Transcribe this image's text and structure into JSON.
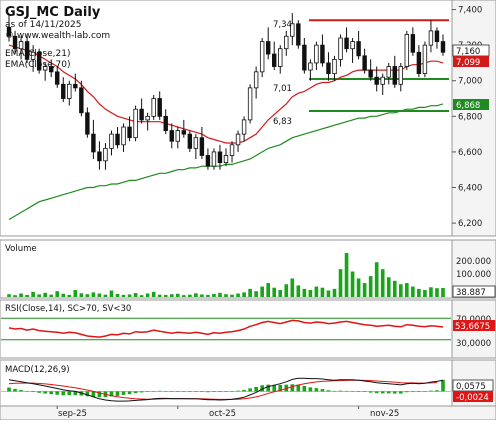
{
  "header": {
    "title": "GSJ_MC Daily",
    "asof": "as of 14/11/2025",
    "site": "© www.wealth-lab.com",
    "ema21_label": "EMA(Close,21)",
    "ema70_label": "EMA(Close,70)"
  },
  "colors": {
    "up_candle": "#ffffff",
    "down_candle": "#111111",
    "ema21": "#d11a1a",
    "ema70": "#1f8a1f",
    "resistance": "#d11a1a",
    "support": "#1f8a1f",
    "volume": "#19a419",
    "rsi": "#e01515",
    "macd": "#111111",
    "macd_signal": "#e01515",
    "macd_hist": "#19a419",
    "axis_bg": "#f4f4f4",
    "tag_close_bg": "#ffffff",
    "tag_ema21_bg": "#d11a1a",
    "tag_ema70_bg": "#1f8a1f"
  },
  "price_annotations": {
    "high_label": "7,34",
    "mid_label": "7,01",
    "low_label": "6,83"
  },
  "price_tags": {
    "close": "7,160",
    "ema21": "7,099",
    "ema70": "6,868"
  },
  "volume_pane": {
    "title": "Volume",
    "last_value": "38.887",
    "ticks": [
      "200.000",
      "100.000"
    ]
  },
  "rsi_pane": {
    "title": "RSI(Close,14), SC>70, SV<30",
    "last_value": "53,6675",
    "ticks": [
      "70,0000",
      "30,0000"
    ]
  },
  "macd_pane": {
    "title": "MACD(12,26,9)",
    "macd_value": "0,0575",
    "signal_value": "-0,0024"
  },
  "x_axis": {
    "labels": [
      "sep-25",
      "oct-25",
      "nov-25"
    ]
  },
  "chart_data": {
    "type": "candlestick",
    "title": "GSJ_MC Daily",
    "y_ticks": [
      "7,400",
      "7,200",
      "7,000",
      "6,800",
      "6,600",
      "6,400",
      "6,200"
    ],
    "ylim": [
      6.15,
      7.42
    ],
    "levels": {
      "resistance": 7.34,
      "support_upper": 7.01,
      "support_lower": 6.83
    },
    "candles": [
      [
        7.3,
        7.38,
        7.22,
        7.25
      ],
      [
        7.25,
        7.28,
        7.15,
        7.18
      ],
      [
        7.18,
        7.25,
        7.12,
        7.22
      ],
      [
        7.22,
        7.26,
        7.1,
        7.12
      ],
      [
        7.12,
        7.2,
        7.05,
        7.16
      ],
      [
        7.16,
        7.18,
        7.04,
        7.06
      ],
      [
        7.06,
        7.1,
        7.0,
        7.08
      ],
      [
        7.08,
        7.12,
        7.02,
        7.05
      ],
      [
        7.05,
        7.08,
        6.96,
        6.98
      ],
      [
        6.98,
        7.02,
        6.88,
        6.9
      ],
      [
        6.9,
        7.0,
        6.86,
        6.98
      ],
      [
        6.98,
        7.04,
        6.94,
        6.96
      ],
      [
        6.96,
        7.0,
        6.8,
        6.82
      ],
      [
        6.82,
        6.85,
        6.68,
        6.7
      ],
      [
        6.7,
        6.78,
        6.56,
        6.6
      ],
      [
        6.6,
        6.66,
        6.5,
        6.55
      ],
      [
        6.55,
        6.65,
        6.5,
        6.62
      ],
      [
        6.62,
        6.72,
        6.58,
        6.7
      ],
      [
        6.7,
        6.74,
        6.62,
        6.64
      ],
      [
        6.64,
        6.76,
        6.6,
        6.74
      ],
      [
        6.74,
        6.8,
        6.66,
        6.68
      ],
      [
        6.68,
        6.86,
        6.66,
        6.84
      ],
      [
        6.84,
        6.9,
        6.76,
        6.78
      ],
      [
        6.78,
        6.82,
        6.72,
        6.8
      ],
      [
        6.8,
        6.92,
        6.78,
        6.9
      ],
      [
        6.9,
        6.94,
        6.78,
        6.8
      ],
      [
        6.8,
        6.84,
        6.7,
        6.72
      ],
      [
        6.72,
        6.76,
        6.62,
        6.66
      ],
      [
        6.66,
        6.74,
        6.62,
        6.72
      ],
      [
        6.72,
        6.78,
        6.68,
        6.7
      ],
      [
        6.7,
        6.72,
        6.6,
        6.62
      ],
      [
        6.62,
        6.7,
        6.56,
        6.68
      ],
      [
        6.68,
        6.74,
        6.56,
        6.58
      ],
      [
        6.58,
        6.62,
        6.5,
        6.52
      ],
      [
        6.52,
        6.62,
        6.5,
        6.6
      ],
      [
        6.6,
        6.64,
        6.5,
        6.54
      ],
      [
        6.54,
        6.62,
        6.52,
        6.58
      ],
      [
        6.58,
        6.66,
        6.54,
        6.64
      ],
      [
        6.64,
        6.72,
        6.6,
        6.7
      ],
      [
        6.7,
        6.8,
        6.66,
        6.78
      ],
      [
        6.78,
        6.98,
        6.76,
        6.96
      ],
      [
        6.96,
        7.08,
        6.9,
        7.05
      ],
      [
        7.05,
        7.24,
        7.02,
        7.22
      ],
      [
        7.22,
        7.3,
        7.12,
        7.15
      ],
      [
        7.15,
        7.22,
        7.06,
        7.08
      ],
      [
        7.08,
        7.2,
        7.04,
        7.18
      ],
      [
        7.18,
        7.28,
        7.14,
        7.25
      ],
      [
        7.25,
        7.38,
        7.2,
        7.32
      ],
      [
        7.32,
        7.34,
        7.18,
        7.2
      ],
      [
        7.2,
        7.24,
        7.04,
        7.06
      ],
      [
        7.06,
        7.12,
        7.0,
        7.1
      ],
      [
        7.1,
        7.22,
        7.06,
        7.2
      ],
      [
        7.2,
        7.26,
        7.08,
        7.1
      ],
      [
        7.1,
        7.16,
        7.0,
        7.04
      ],
      [
        7.04,
        7.14,
        7.0,
        7.12
      ],
      [
        7.12,
        7.26,
        7.08,
        7.24
      ],
      [
        7.24,
        7.3,
        7.16,
        7.18
      ],
      [
        7.18,
        7.24,
        7.1,
        7.22
      ],
      [
        7.22,
        7.28,
        7.12,
        7.14
      ],
      [
        7.14,
        7.18,
        7.04,
        7.06
      ],
      [
        7.06,
        7.12,
        7.0,
        7.02
      ],
      [
        7.02,
        7.08,
        6.94,
        6.98
      ],
      [
        6.98,
        7.04,
        6.92,
        7.02
      ],
      [
        7.02,
        7.1,
        6.98,
        7.08
      ],
      [
        7.08,
        7.14,
        6.96,
        6.98
      ],
      [
        6.98,
        7.1,
        6.94,
        7.08
      ],
      [
        7.08,
        7.28,
        7.06,
        7.26
      ],
      [
        7.26,
        7.3,
        7.14,
        7.16
      ],
      [
        7.16,
        7.2,
        7.02,
        7.04
      ],
      [
        7.04,
        7.22,
        7.02,
        7.2
      ],
      [
        7.2,
        7.34,
        7.16,
        7.28
      ],
      [
        7.28,
        7.3,
        7.18,
        7.22
      ],
      [
        7.22,
        7.26,
        7.14,
        7.16
      ]
    ],
    "ema21": [
      7.2,
      7.19,
      7.18,
      7.17,
      7.16,
      7.14,
      7.12,
      7.1,
      7.08,
      7.05,
      7.03,
      7.01,
      6.98,
      6.94,
      6.91,
      6.87,
      6.84,
      6.82,
      6.8,
      6.79,
      6.78,
      6.77,
      6.77,
      6.77,
      6.77,
      6.77,
      6.76,
      6.75,
      6.74,
      6.73,
      6.72,
      6.71,
      6.7,
      6.68,
      6.67,
      6.66,
      6.65,
      6.65,
      6.65,
      6.66,
      6.68,
      6.7,
      6.74,
      6.78,
      6.81,
      6.84,
      6.87,
      6.91,
      6.93,
      6.94,
      6.96,
      6.98,
      6.99,
      6.99,
      7.0,
      7.02,
      7.03,
      7.05,
      7.06,
      7.06,
      7.06,
      7.06,
      7.06,
      7.06,
      7.06,
      7.06,
      7.08,
      7.09,
      7.09,
      7.1,
      7.11,
      7.11,
      7.1
    ],
    "ema70": [
      6.22,
      6.24,
      6.26,
      6.28,
      6.3,
      6.32,
      6.33,
      6.34,
      6.35,
      6.36,
      6.37,
      6.38,
      6.39,
      6.4,
      6.4,
      6.41,
      6.41,
      6.42,
      6.42,
      6.43,
      6.44,
      6.44,
      6.45,
      6.46,
      6.47,
      6.48,
      6.48,
      6.49,
      6.5,
      6.5,
      6.51,
      6.51,
      6.52,
      6.52,
      6.52,
      6.52,
      6.53,
      6.53,
      6.54,
      6.55,
      6.56,
      6.58,
      6.6,
      6.62,
      6.63,
      6.64,
      6.66,
      6.68,
      6.69,
      6.7,
      6.71,
      6.72,
      6.73,
      6.74,
      6.75,
      6.76,
      6.77,
      6.78,
      6.79,
      6.79,
      6.8,
      6.8,
      6.81,
      6.82,
      6.82,
      6.83,
      6.84,
      6.84,
      6.85,
      6.85,
      6.86,
      6.86,
      6.87
    ],
    "volume": [
      12000,
      8000,
      15000,
      9000,
      22000,
      11000,
      18000,
      10000,
      25000,
      14000,
      9000,
      30000,
      16000,
      12000,
      20000,
      15000,
      10000,
      28000,
      13000,
      9000,
      11000,
      17000,
      8000,
      15000,
      22000,
      10000,
      9000,
      12000,
      14000,
      8000,
      10000,
      16000,
      11000,
      9000,
      13000,
      18000,
      12000,
      10000,
      15000,
      20000,
      35000,
      25000,
      45000,
      60000,
      40000,
      30000,
      55000,
      80000,
      50000,
      35000,
      30000,
      45000,
      40000,
      28000,
      35000,
      120000,
      190000,
      110000,
      80000,
      60000,
      90000,
      150000,
      120000,
      85000,
      70000,
      55000,
      60000,
      45000,
      35000,
      30000,
      42000,
      38000,
      38887
    ],
    "rsi": [
      52,
      50,
      51,
      48,
      50,
      47,
      46,
      45,
      44,
      42,
      44,
      43,
      40,
      37,
      36,
      35,
      37,
      40,
      39,
      42,
      41,
      45,
      44,
      45,
      48,
      46,
      44,
      42,
      44,
      43,
      42,
      44,
      42,
      40,
      43,
      42,
      44,
      45,
      47,
      50,
      55,
      58,
      62,
      64,
      62,
      60,
      63,
      66,
      65,
      62,
      61,
      63,
      62,
      60,
      61,
      63,
      64,
      62,
      60,
      58,
      57,
      55,
      56,
      57,
      55,
      54,
      58,
      57,
      55,
      54,
      56,
      55,
      53.67
    ],
    "macd": [
      0.06,
      0.055,
      0.05,
      0.045,
      0.04,
      0.034,
      0.028,
      0.022,
      0.015,
      0.008,
      0.004,
      0.0,
      -0.008,
      -0.018,
      -0.028,
      -0.038,
      -0.044,
      -0.048,
      -0.05,
      -0.05,
      -0.049,
      -0.046,
      -0.044,
      -0.042,
      -0.038,
      -0.036,
      -0.036,
      -0.037,
      -0.037,
      -0.037,
      -0.038,
      -0.038,
      -0.04,
      -0.043,
      -0.043,
      -0.044,
      -0.043,
      -0.04,
      -0.036,
      -0.03,
      -0.018,
      -0.005,
      0.012,
      0.025,
      0.032,
      0.04,
      0.05,
      0.062,
      0.068,
      0.068,
      0.066,
      0.066,
      0.064,
      0.06,
      0.058,
      0.06,
      0.06,
      0.06,
      0.058,
      0.054,
      0.05,
      0.045,
      0.042,
      0.04,
      0.037,
      0.034,
      0.04,
      0.042,
      0.04,
      0.042,
      0.048,
      0.052,
      0.0575
    ],
    "signal": [
      0.04,
      0.042,
      0.043,
      0.043,
      0.043,
      0.041,
      0.039,
      0.036,
      0.032,
      0.028,
      0.023,
      0.019,
      0.013,
      0.007,
      0.0,
      -0.008,
      -0.015,
      -0.022,
      -0.027,
      -0.032,
      -0.035,
      -0.038,
      -0.039,
      -0.04,
      -0.04,
      -0.039,
      -0.038,
      -0.038,
      -0.038,
      -0.038,
      -0.038,
      -0.038,
      -0.038,
      -0.039,
      -0.04,
      -0.041,
      -0.041,
      -0.041,
      -0.04,
      -0.038,
      -0.034,
      -0.028,
      -0.02,
      -0.01,
      -0.002,
      0.006,
      0.015,
      0.025,
      0.033,
      0.04,
      0.045,
      0.049,
      0.052,
      0.054,
      0.055,
      0.056,
      0.057,
      0.058,
      0.058,
      0.057,
      0.056,
      0.054,
      0.052,
      0.05,
      0.048,
      0.045,
      0.044,
      0.044,
      0.043,
      0.043,
      0.044,
      0.046,
      -0.0024
    ],
    "x_tick_index": [
      8,
      28,
      58
    ]
  }
}
